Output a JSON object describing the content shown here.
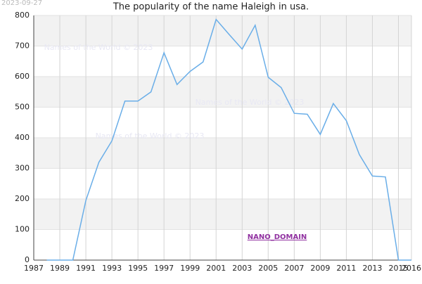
{
  "chart_data": {
    "type": "line",
    "title": "The popularity of the name Haleigh in usa.",
    "date_stamp": "2023-09-27",
    "watermark": "Names of the World © 2023",
    "domain_label": "NANO_DOMAIN",
    "x": [
      1988,
      1989,
      1990,
      1991,
      1992,
      1993,
      1994,
      1995,
      1996,
      1997,
      1998,
      1999,
      2000,
      2001,
      2002,
      2003,
      2004,
      2005,
      2006,
      2007,
      2008,
      2009,
      2010,
      2011,
      2012,
      2013,
      2014,
      2015,
      2016
    ],
    "series": [
      {
        "name": "Haleigh",
        "color": "#6aaee8",
        "values": [
          0,
          0,
          0,
          195,
          320,
          390,
          520,
          520,
          550,
          678,
          574,
          617,
          648,
          787,
          738,
          690,
          768,
          598,
          564,
          480,
          477,
          411,
          512,
          456,
          345,
          275,
          272,
          0,
          0
        ]
      }
    ],
    "xlim": [
      1987,
      2016
    ],
    "xticks": [
      1987,
      1989,
      1991,
      1993,
      1995,
      1997,
      1999,
      2001,
      2003,
      2005,
      2007,
      2009,
      2011,
      2013,
      2015,
      2016
    ],
    "ylim": [
      0,
      800
    ],
    "yticks": [
      0,
      100,
      200,
      300,
      400,
      500,
      600,
      700,
      800
    ],
    "grid": true
  }
}
